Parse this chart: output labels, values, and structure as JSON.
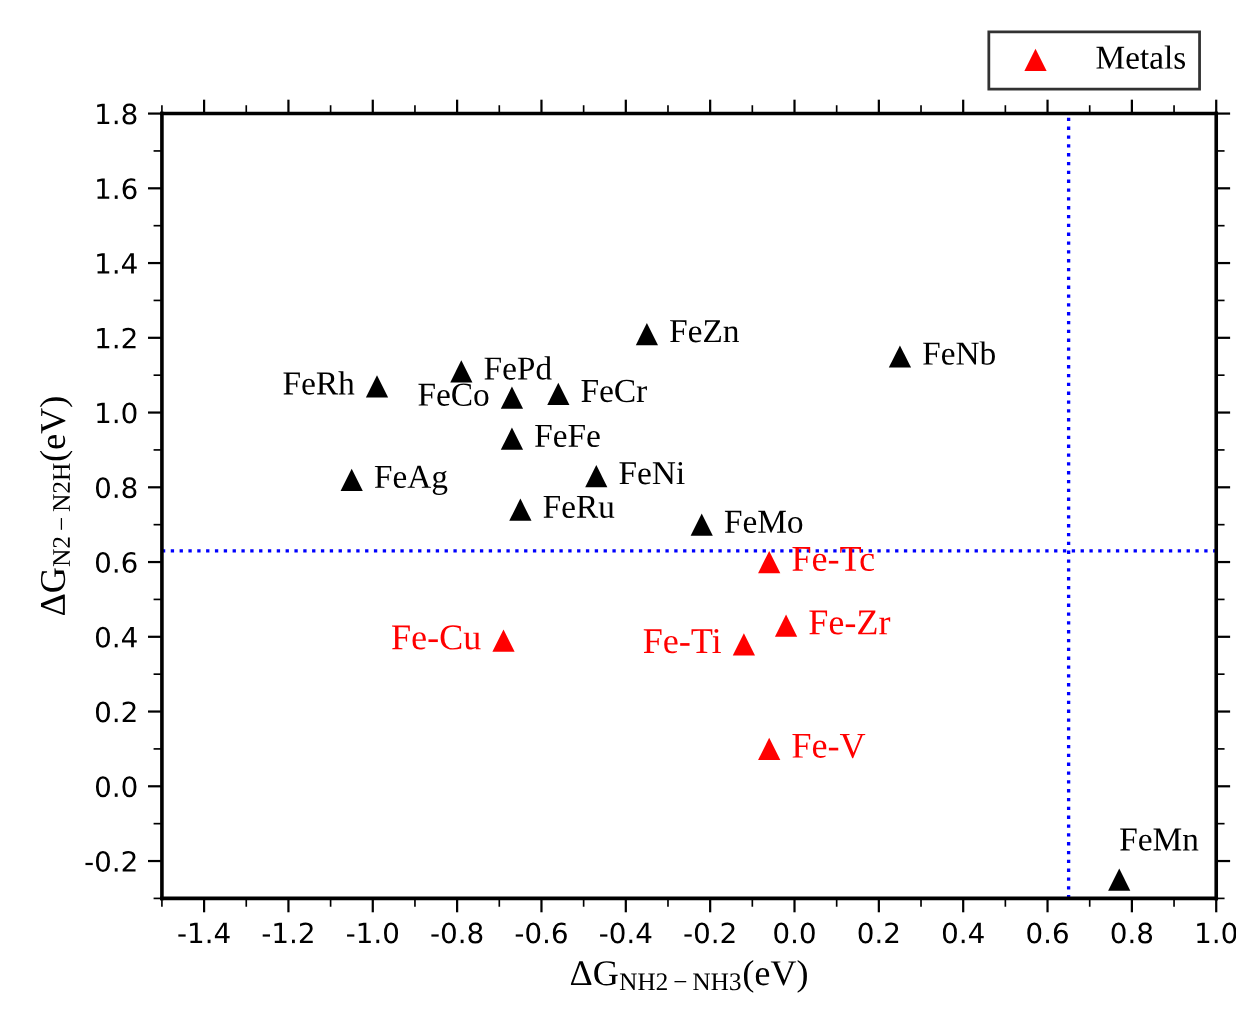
{
  "chart_data": {
    "type": "scatter",
    "xlabel": "ΔG$_{NH2−NH3}$(eV)",
    "ylabel": "ΔG$_{N2−N2H}$(eV)",
    "xlim": [
      -1.5,
      1.0
    ],
    "ylim": [
      -0.3,
      1.8
    ],
    "xticks": [
      -1.4,
      -1.2,
      {
        "value": -1,
        "label": "-1.0"
      },
      -0.8,
      -0.6,
      -0.4,
      -0.2,
      {
        "value": 0,
        "label": "0.0"
      },
      0.2,
      0.4,
      0.6,
      0.8,
      {
        "value": 1,
        "label": "1.0"
      }
    ],
    "yticks": [
      -0.2,
      {
        "value": 0,
        "label": "0.0"
      },
      0.2,
      0.4,
      0.6,
      0.8,
      {
        "value": 1,
        "label": "1.0"
      },
      1.2,
      1.4,
      1.6,
      1.8
    ],
    "marker": "triangle",
    "grid": false,
    "legend": "top right",
    "series": [
      {
        "color": "#000000",
        "x": [
          -0.99,
          -0.79,
          -0.67,
          -0.56,
          -0.35,
          -0.67,
          -1.05,
          -0.47,
          -0.65,
          -0.22,
          0.25,
          0.77
        ],
        "values": [
          1.07,
          1.11,
          1.04,
          1.05,
          1.21,
          0.93,
          0.82,
          0.83,
          0.74,
          0.7,
          1.15,
          -0.25
        ]
      },
      {
        "name": "Metals",
        "color": "#ff0000",
        "x": [
          -0.06,
          -0.02,
          -0.69,
          -0.12,
          -0.06
        ],
        "values": [
          0.6,
          0.43,
          0.39,
          0.38,
          0.1
        ]
      }
    ],
    "ref_lines": [
      {
        "axis": "x",
        "value": 0.65,
        "color": "#0000ff",
        "line_style": "dotted"
      },
      {
        "axis": "y",
        "value": 0.63,
        "color": "#0000ff",
        "line_style": "dotted"
      }
    ],
    "annotations": [
      {
        "text": "FeRh",
        "x": -0.99,
        "y": 1.07
      },
      {
        "text": "FePd",
        "x": -0.79,
        "y": 1.11
      },
      {
        "text": "FeCo",
        "x": -0.67,
        "y": 1.04
      },
      {
        "text": "FeCr",
        "x": -0.56,
        "y": 1.05
      },
      {
        "text": "FeZn",
        "x": -0.35,
        "y": 1.21
      },
      {
        "text": "FeFe",
        "x": -0.67,
        "y": 0.93
      },
      {
        "text": "FeAg",
        "x": -1.05,
        "y": 0.82
      },
      {
        "text": "FeNi",
        "x": -0.47,
        "y": 0.83
      },
      {
        "text": "FeRu",
        "x": -0.65,
        "y": 0.74
      },
      {
        "text": "FeMo",
        "x": -0.22,
        "y": 0.7
      },
      {
        "text": "FeNb",
        "x": 0.25,
        "y": 1.15
      },
      {
        "text": "FeMn",
        "x": 0.77,
        "y": -0.25
      },
      {
        "text": "Fe-Tc",
        "x": -0.06,
        "y": 0.6
      },
      {
        "text": "Fe-Zr",
        "x": -0.02,
        "y": 0.43
      },
      {
        "text": "Fe-Cu",
        "x": -0.69,
        "y": 0.39
      },
      {
        "text": "Fe-Ti",
        "x": -0.12,
        "y": 0.38
      },
      {
        "text": "Fe-V",
        "x": -0.06,
        "y": 0.1
      }
    ]
  }
}
